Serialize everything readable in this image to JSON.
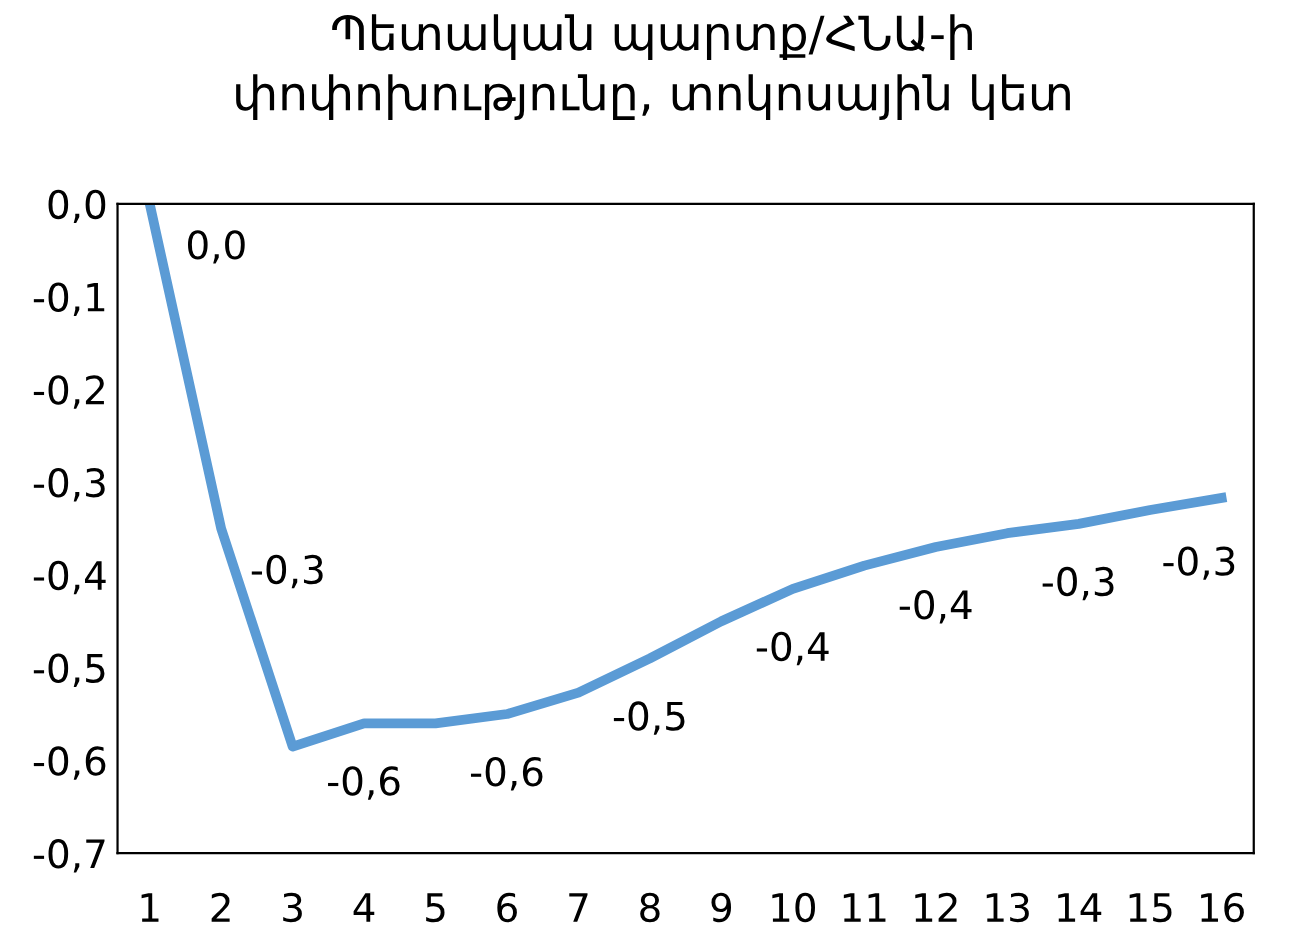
{
  "chart_data": {
    "type": "line",
    "title": "Պետական պարտք/ՀՆԱ-ի\nփոփոխությունը, տոկոսային կետ",
    "categories": [
      "1",
      "2",
      "3",
      "4",
      "5",
      "6",
      "7",
      "8",
      "9",
      "10",
      "11",
      "12",
      "13",
      "14",
      "15",
      "16"
    ],
    "series": [
      {
        "color": "#5b9bd5",
        "values": [
          0.0,
          -0.35,
          -0.585,
          -0.56,
          -0.56,
          -0.55,
          -0.527,
          -0.49,
          -0.45,
          -0.415,
          -0.39,
          -0.37,
          -0.355,
          -0.345,
          -0.33,
          -0.317
        ],
        "value_labels": [
          "0,0",
          "-0,3",
          null,
          "-0,6",
          null,
          "-0,6",
          null,
          "-0,5",
          null,
          "-0,4",
          null,
          "-0,4",
          null,
          "-0,3",
          null,
          "-0,3"
        ]
      }
    ],
    "ylim": [
      -0.7,
      0.0
    ],
    "yticks": [
      {
        "value": 0.0,
        "label": "0,0"
      },
      {
        "value": -0.1,
        "label": "-0,1"
      },
      {
        "value": -0.2,
        "label": "-0,2"
      },
      {
        "value": -0.3,
        "label": "-0,3"
      },
      {
        "value": -0.4,
        "label": "-0,4"
      },
      {
        "value": -0.5,
        "label": "-0,5"
      },
      {
        "value": -0.6,
        "label": "-0,6"
      },
      {
        "value": -0.7,
        "label": "-0,7"
      }
    ],
    "grid": false,
    "marker": "none",
    "line_style": "solid"
  }
}
